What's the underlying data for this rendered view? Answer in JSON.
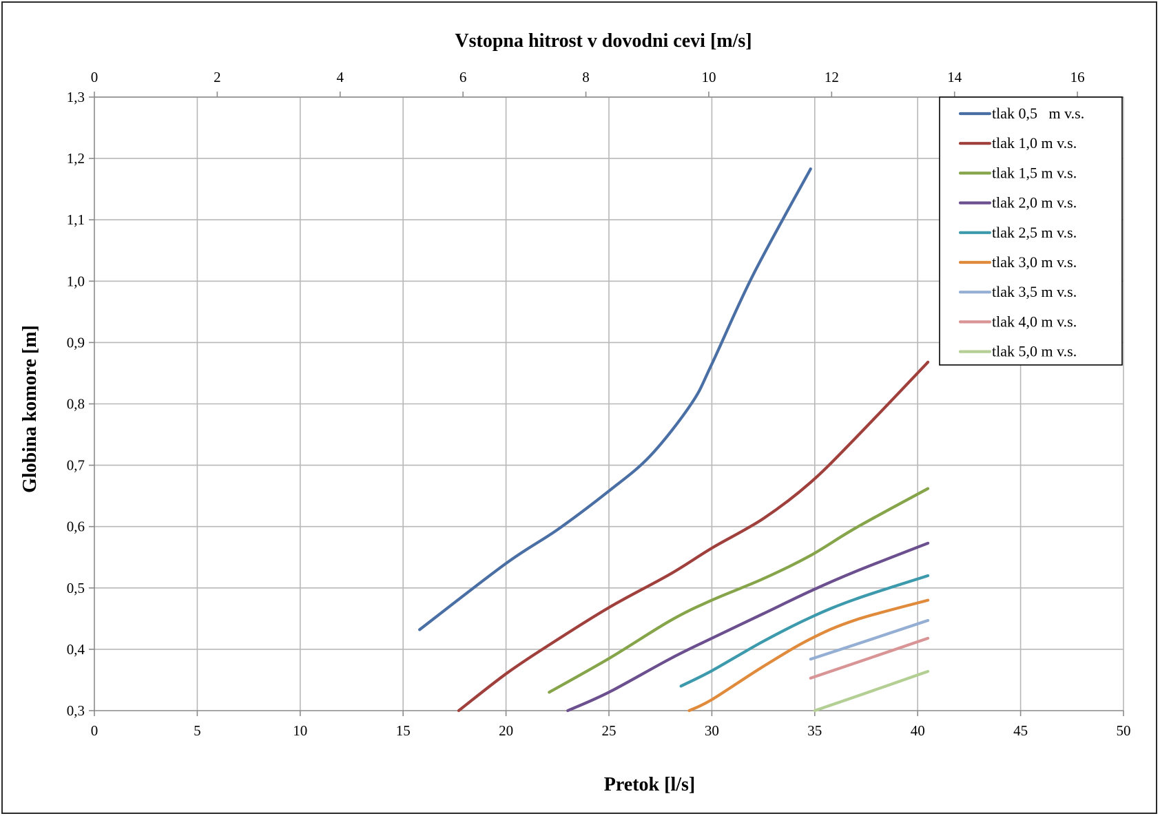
{
  "chart_data": {
    "type": "line",
    "xlabel": "Pretok [l/s]",
    "x2label": "Vstopna hitrost v dovodni cevi [m/s]",
    "ylabel": "Globina komore [m]",
    "xlim": [
      0,
      50
    ],
    "x2lim": [
      0,
      16.75
    ],
    "ylim": [
      0.3,
      1.3
    ],
    "x_ticks": [
      0,
      5,
      10,
      15,
      20,
      25,
      30,
      35,
      40,
      45,
      50
    ],
    "x_tick_labels": [
      "0",
      "5",
      "10",
      "15",
      "20",
      "25",
      "30",
      "35",
      "40",
      "45",
      "50"
    ],
    "x2_ticks": [
      0,
      2,
      4,
      6,
      8,
      10,
      12,
      14,
      16
    ],
    "x2_tick_labels": [
      "0",
      "2",
      "4",
      "6",
      "8",
      "10",
      "12",
      "14",
      "16"
    ],
    "y_ticks": [
      0.3,
      0.4,
      0.5,
      0.6,
      0.7,
      0.8,
      0.9,
      1.0,
      1.1,
      1.2,
      1.3
    ],
    "y_tick_labels": [
      "0,3",
      "0,4",
      "0,5",
      "0,6",
      "0,7",
      "0,8",
      "0,9",
      "1,0",
      "1,1",
      "1,2",
      "1,3"
    ],
    "grid": true,
    "legend_position": "top-right",
    "series": [
      {
        "name": "tlak 0,5   m v.s.",
        "color": "#4a6fa5",
        "x": [
          15.8,
          20,
          22.5,
          25,
          27,
          29,
          30,
          32,
          34.8
        ],
        "y": [
          0.432,
          0.54,
          0.595,
          0.658,
          0.715,
          0.8,
          0.865,
          1.01,
          1.183
        ]
      },
      {
        "name": "tlak 1,0 m v.s.",
        "color": "#a0403c",
        "x": [
          17.7,
          20,
          22,
          25,
          28,
          30,
          32.5,
          34.8,
          37,
          40.5
        ],
        "y": [
          0.3,
          0.36,
          0.405,
          0.468,
          0.523,
          0.565,
          0.613,
          0.672,
          0.745,
          0.868
        ]
      },
      {
        "name": "tlak 1,5 m v.s.",
        "color": "#86a54a",
        "x": [
          22.1,
          25,
          28,
          30,
          32.5,
          34.8,
          37,
          40.5
        ],
        "y": [
          0.33,
          0.385,
          0.447,
          0.48,
          0.515,
          0.553,
          0.598,
          0.662
        ]
      },
      {
        "name": "tlak 2,0 m v.s.",
        "color": "#6b4f8e",
        "x": [
          23,
          25,
          28,
          30,
          32.5,
          34.8,
          37,
          40.5
        ],
        "y": [
          0.3,
          0.33,
          0.385,
          0.418,
          0.458,
          0.495,
          0.527,
          0.573
        ]
      },
      {
        "name": "tlak 2,5 m v.s.",
        "color": "#3c9aac",
        "x": [
          28.5,
          30,
          32.5,
          34.8,
          37,
          40.5
        ],
        "y": [
          0.34,
          0.365,
          0.413,
          0.452,
          0.482,
          0.52
        ]
      },
      {
        "name": "tlak 3,0 m v.s.",
        "color": "#e08a3c",
        "x": [
          28.9,
          30,
          32.5,
          34.8,
          37,
          40.5
        ],
        "y": [
          0.3,
          0.318,
          0.372,
          0.417,
          0.448,
          0.48
        ]
      },
      {
        "name": "tlak 3,5 m v.s.",
        "color": "#94aed4",
        "x": [
          34.8,
          37,
          40.5
        ],
        "y": [
          0.384,
          0.408,
          0.447
        ]
      },
      {
        "name": "tlak 4,0 m v.s.",
        "color": "#d99595",
        "x": [
          34.8,
          37,
          40.5
        ],
        "y": [
          0.353,
          0.378,
          0.418
        ]
      },
      {
        "name": "tlak 5,0 m v.s.",
        "color": "#b4cf94",
        "x": [
          35,
          37,
          40.5
        ],
        "y": [
          0.3,
          0.323,
          0.364
        ]
      }
    ]
  }
}
